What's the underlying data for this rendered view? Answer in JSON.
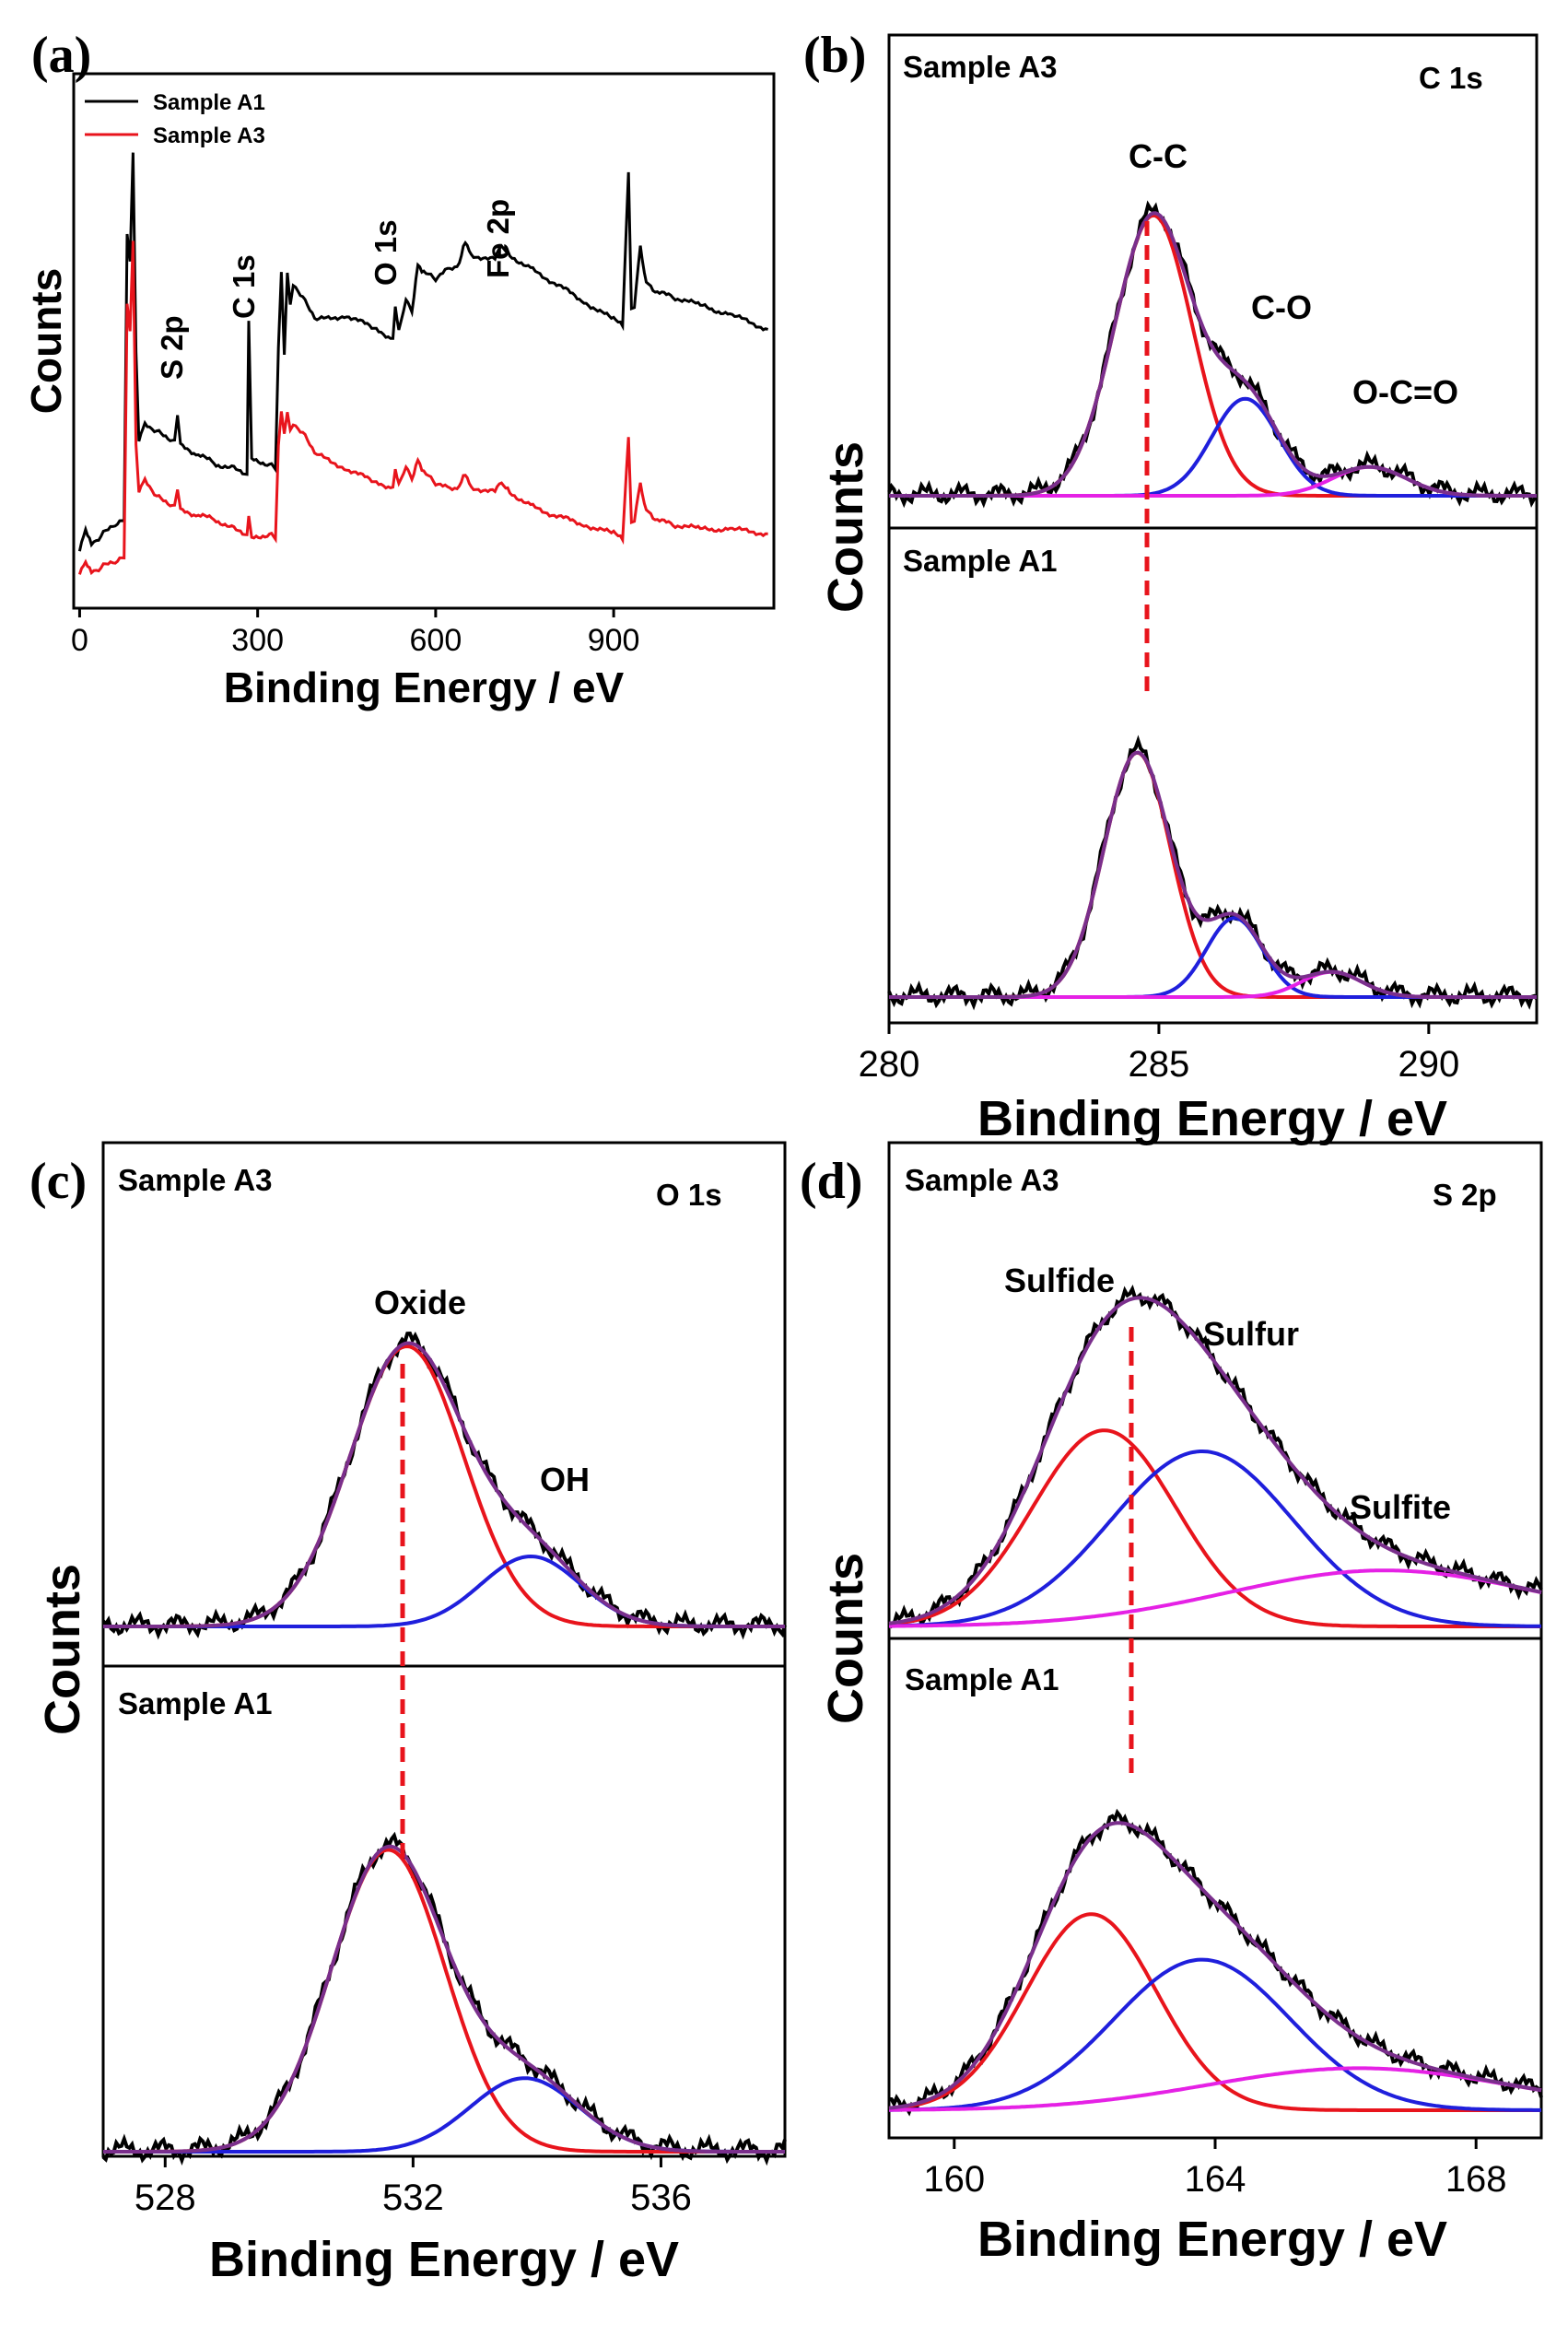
{
  "figure": {
    "panel_tags": {
      "a": "(a)",
      "b": "(b)",
      "c": "(c)",
      "d": "(d)"
    }
  },
  "colors": {
    "black": "#000000",
    "red": "#e8141c",
    "blue": "#1f1fdc",
    "magenta": "#e521e5",
    "purple": "#7a2f8c",
    "dash": "#e8141c"
  },
  "chart_data": [
    {
      "panel": "a",
      "type": "line",
      "xlabel": "Binding Energy / eV",
      "ylabel": "Counts",
      "xlim": [
        -10,
        1170
      ],
      "ylim": [
        0,
        1.15
      ],
      "xticks": [
        "0",
        "300",
        "600",
        "900"
      ],
      "legend": {
        "position": "top-left",
        "entries": [
          "Sample A1",
          "Sample A3"
        ]
      },
      "annotations": [
        "S 2p",
        "C 1s",
        "O 1s",
        "Fe 2p"
      ],
      "series": [
        {
          "name": "Sample A1",
          "color": "#000000",
          "points": [
            [
              0,
              0.12
            ],
            [
              10,
              0.17
            ],
            [
              20,
              0.14
            ],
            [
              40,
              0.16
            ],
            [
              60,
              0.18
            ],
            [
              75,
              0.19
            ],
            [
              80,
              0.8
            ],
            [
              85,
              0.75
            ],
            [
              90,
              0.98
            ],
            [
              95,
              0.55
            ],
            [
              100,
              0.36
            ],
            [
              110,
              0.4
            ],
            [
              130,
              0.38
            ],
            [
              160,
              0.36
            ],
            [
              165,
              0.42
            ],
            [
              170,
              0.35
            ],
            [
              200,
              0.33
            ],
            [
              230,
              0.31
            ],
            [
              260,
              0.3
            ],
            [
              282,
              0.29
            ],
            [
              285,
              0.62
            ],
            [
              290,
              0.32
            ],
            [
              320,
              0.31
            ],
            [
              330,
              0.3
            ],
            [
              335,
              0.56
            ],
            [
              340,
              0.72
            ],
            [
              345,
              0.55
            ],
            [
              350,
              0.72
            ],
            [
              355,
              0.65
            ],
            [
              360,
              0.7
            ],
            [
              380,
              0.66
            ],
            [
              400,
              0.62
            ],
            [
              450,
              0.63
            ],
            [
              500,
              0.6
            ],
            [
              528,
              0.58
            ],
            [
              532,
              0.65
            ],
            [
              538,
              0.6
            ],
            [
              550,
              0.66
            ],
            [
              560,
              0.64
            ],
            [
              570,
              0.74
            ],
            [
              580,
              0.72
            ],
            [
              600,
              0.71
            ],
            [
              620,
              0.73
            ],
            [
              640,
              0.74
            ],
            [
              650,
              0.79
            ],
            [
              660,
              0.76
            ],
            [
              700,
              0.75
            ],
            [
              711,
              0.78
            ],
            [
              725,
              0.76
            ],
            [
              760,
              0.73
            ],
            [
              800,
              0.7
            ],
            [
              850,
              0.66
            ],
            [
              900,
              0.62
            ],
            [
              915,
              0.61
            ],
            [
              925,
              0.94
            ],
            [
              930,
              0.64
            ],
            [
              935,
              0.65
            ],
            [
              945,
              0.78
            ],
            [
              955,
              0.7
            ],
            [
              970,
              0.68
            ],
            [
              1000,
              0.67
            ],
            [
              1050,
              0.65
            ],
            [
              1100,
              0.63
            ],
            [
              1160,
              0.6
            ]
          ]
        },
        {
          "name": "Sample A3",
          "color": "#e8141c",
          "points": [
            [
              0,
              0.07
            ],
            [
              10,
              0.1
            ],
            [
              20,
              0.08
            ],
            [
              40,
              0.09
            ],
            [
              60,
              0.1
            ],
            [
              75,
              0.11
            ],
            [
              80,
              0.65
            ],
            [
              85,
              0.6
            ],
            [
              90,
              0.79
            ],
            [
              95,
              0.35
            ],
            [
              100,
              0.25
            ],
            [
              110,
              0.28
            ],
            [
              130,
              0.24
            ],
            [
              160,
              0.22
            ],
            [
              165,
              0.26
            ],
            [
              170,
              0.21
            ],
            [
              200,
              0.2
            ],
            [
              230,
              0.19
            ],
            [
              260,
              0.17
            ],
            [
              282,
              0.16
            ],
            [
              285,
              0.2
            ],
            [
              290,
              0.15
            ],
            [
              320,
              0.16
            ],
            [
              330,
              0.15
            ],
            [
              335,
              0.35
            ],
            [
              340,
              0.42
            ],
            [
              345,
              0.38
            ],
            [
              350,
              0.42
            ],
            [
              355,
              0.38
            ],
            [
              360,
              0.4
            ],
            [
              380,
              0.37
            ],
            [
              400,
              0.33
            ],
            [
              450,
              0.3
            ],
            [
              500,
              0.27
            ],
            [
              528,
              0.26
            ],
            [
              532,
              0.3
            ],
            [
              538,
              0.27
            ],
            [
              550,
              0.3
            ],
            [
              560,
              0.28
            ],
            [
              570,
              0.32
            ],
            [
              580,
              0.29
            ],
            [
              600,
              0.27
            ],
            [
              620,
              0.26
            ],
            [
              640,
              0.26
            ],
            [
              650,
              0.29
            ],
            [
              660,
              0.26
            ],
            [
              700,
              0.25
            ],
            [
              711,
              0.27
            ],
            [
              725,
              0.25
            ],
            [
              760,
              0.22
            ],
            [
              800,
              0.2
            ],
            [
              850,
              0.18
            ],
            [
              900,
              0.16
            ],
            [
              915,
              0.15
            ],
            [
              925,
              0.37
            ],
            [
              930,
              0.18
            ],
            [
              935,
              0.19
            ],
            [
              945,
              0.27
            ],
            [
              955,
              0.21
            ],
            [
              970,
              0.19
            ],
            [
              1000,
              0.18
            ],
            [
              1050,
              0.17
            ],
            [
              1100,
              0.17
            ],
            [
              1160,
              0.16
            ]
          ]
        }
      ]
    },
    {
      "panel": "b",
      "type": "line",
      "region": "C 1s",
      "xlabel": "Binding Energy / eV",
      "ylabel": "Counts",
      "xlim": [
        280,
        292
      ],
      "xticks": [
        "280",
        "285",
        "290"
      ],
      "annotations": [
        "C-C",
        "C-O",
        "O-C=O"
      ],
      "subplots": [
        {
          "sample_label": "Sample A3",
          "components": [
            {
              "name": "C-C",
              "color": "#e8141c",
              "center": 284.9,
              "height": 0.78,
              "width": 0.72
            },
            {
              "name": "C-O",
              "color": "#1f1fdc",
              "center": 286.6,
              "height": 0.27,
              "width": 0.62
            },
            {
              "name": "O-C=O",
              "color": "#e521e5",
              "center": 288.9,
              "height": 0.08,
              "width": 0.68
            }
          ]
        },
        {
          "sample_label": "Sample A1",
          "components": [
            {
              "name": "C-C",
              "color": "#e8141c",
              "center": 284.6,
              "height": 0.68,
              "width": 0.62
            },
            {
              "name": "C-O",
              "color": "#1f1fdc",
              "center": 286.4,
              "height": 0.22,
              "width": 0.52
            },
            {
              "name": "O-C=O",
              "color": "#e521e5",
              "center": 288.2,
              "height": 0.07,
              "width": 0.56
            }
          ]
        }
      ]
    },
    {
      "panel": "c",
      "type": "line",
      "region": "O 1s",
      "xlabel": "Binding Energy / eV",
      "ylabel": "Counts",
      "xlim": [
        527,
        538
      ],
      "xticks": [
        "528",
        "532",
        "536"
      ],
      "annotations": [
        "Oxide",
        "OH"
      ],
      "subplots": [
        {
          "sample_label": "Sample A3",
          "components": [
            {
              "name": "Oxide",
              "color": "#e8141c",
              "center": 531.9,
              "height": 0.76,
              "width": 0.92
            },
            {
              "name": "OH",
              "color": "#1f1fdc",
              "center": 533.9,
              "height": 0.19,
              "width": 0.8
            }
          ]
        },
        {
          "sample_label": "Sample A1",
          "components": [
            {
              "name": "Oxide",
              "color": "#e8141c",
              "center": 531.6,
              "height": 0.78,
              "width": 0.92
            },
            {
              "name": "OH",
              "color": "#1f1fdc",
              "center": 533.8,
              "height": 0.19,
              "width": 0.88
            }
          ]
        }
      ]
    },
    {
      "panel": "d",
      "type": "line",
      "region": "S 2p",
      "xlabel": "Binding Energy / eV",
      "ylabel": "Counts",
      "xlim": [
        159,
        169
      ],
      "xticks": [
        "160",
        "164",
        "168"
      ],
      "annotations": [
        "Sulfide",
        "Sulfur",
        "Sulfite"
      ],
      "subplots": [
        {
          "sample_label": "Sample A3",
          "components": [
            {
              "name": "Sulfide",
              "color": "#e8141c",
              "center": 162.3,
              "height": 0.56,
              "width": 1.1
            },
            {
              "name": "Sulfur",
              "color": "#1f1fdc",
              "center": 163.8,
              "height": 0.5,
              "width": 1.4
            },
            {
              "name": "Sulfite",
              "color": "#e521e5",
              "center": 166.6,
              "height": 0.16,
              "width": 2.4
            }
          ]
        },
        {
          "sample_label": "Sample A1",
          "components": [
            {
              "name": "Sulfide",
              "color": "#e8141c",
              "center": 162.1,
              "height": 0.56,
              "width": 1.0
            },
            {
              "name": "Sulfur",
              "color": "#1f1fdc",
              "center": 163.8,
              "height": 0.43,
              "width": 1.35
            },
            {
              "name": "Sulfite",
              "color": "#e521e5",
              "center": 166.2,
              "height": 0.12,
              "width": 2.3
            }
          ]
        }
      ]
    }
  ]
}
